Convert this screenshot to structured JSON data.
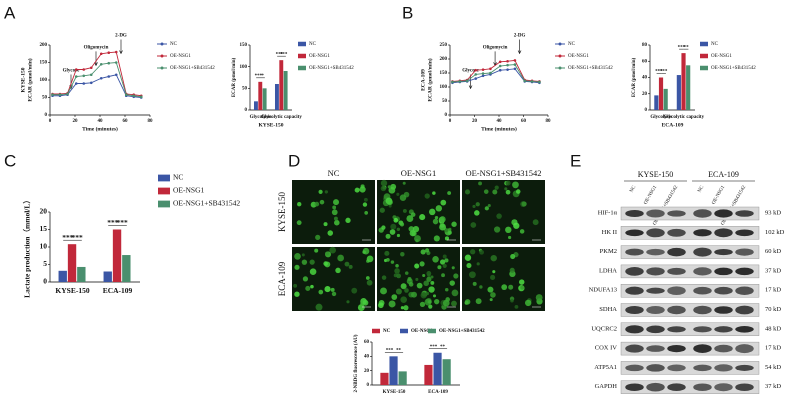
{
  "panel_labels": [
    "A",
    "B",
    "C",
    "D",
    "E"
  ],
  "chart_data": [
    {
      "type": "line",
      "ylabel": [
        "KYSE-150",
        "ECAR (pmol/min)"
      ],
      "xlabel": "Time (minutes)",
      "x": [
        2,
        8,
        14,
        21,
        27,
        33,
        41,
        47,
        53,
        61,
        67,
        73
      ],
      "xlim": [
        0,
        80
      ],
      "xticks": [
        0,
        20,
        40,
        60,
        80
      ],
      "ylim": [
        0,
        200
      ],
      "yticks": [
        0,
        50,
        100,
        150,
        200
      ],
      "annotations": [
        "Glycose",
        "Oligomycin",
        "2-DG"
      ],
      "series": [
        {
          "name": "NC",
          "color": "#3b56a5",
          "values": [
            55,
            55,
            58,
            90,
            90,
            92,
            105,
            110,
            115,
            55,
            52,
            50
          ]
        },
        {
          "name": "OE-NSG1",
          "color": "#c1283a",
          "values": [
            60,
            60,
            62,
            130,
            130,
            135,
            175,
            178,
            180,
            60,
            58,
            55
          ]
        },
        {
          "name": "OE-NSG1+SB431542",
          "color": "#4a8f6e",
          "values": [
            58,
            58,
            60,
            110,
            112,
            115,
            145,
            148,
            150,
            58,
            55,
            52
          ]
        }
      ]
    },
    {
      "type": "bar",
      "ylabel": "ECAR (pmol/min)",
      "xlabel": "KYSE-150",
      "categories": [
        "Glycolysis",
        "Glycolytic capacity"
      ],
      "ylim": [
        0,
        150
      ],
      "yticks": [
        0,
        50,
        100,
        150
      ],
      "significance": [
        "***",
        "*",
        "***",
        "***"
      ],
      "series": [
        {
          "name": "NC",
          "color": "#3b56a5",
          "values": [
            20,
            60
          ]
        },
        {
          "name": "OE-NSG1",
          "color": "#c1283a",
          "values": [
            65,
            115
          ]
        },
        {
          "name": "OE-NSG1+SB431542",
          "color": "#4a8f6e",
          "values": [
            50,
            90
          ]
        }
      ]
    },
    {
      "type": "line",
      "ylabel": [
        "ECA-109",
        "ECAR (pmol/min)"
      ],
      "xlabel": "Time (minutes)",
      "x": [
        2,
        8,
        14,
        21,
        27,
        33,
        41,
        47,
        53,
        61,
        67,
        73
      ],
      "xlim": [
        0,
        80
      ],
      "xticks": [
        0,
        20,
        40,
        60,
        80
      ],
      "ylim": [
        0,
        250
      ],
      "yticks": [
        0,
        50,
        100,
        150,
        200,
        250
      ],
      "annotations": [
        "Glycose",
        "Oligomycin",
        "2-DG"
      ],
      "series": [
        {
          "name": "NC",
          "color": "#3b56a5",
          "values": [
            115,
            118,
            120,
            130,
            140,
            145,
            160,
            162,
            165,
            120,
            118,
            115
          ]
        },
        {
          "name": "OE-NSG1",
          "color": "#c1283a",
          "values": [
            120,
            122,
            125,
            160,
            162,
            165,
            190,
            192,
            195,
            125,
            122,
            120
          ]
        },
        {
          "name": "OE-NSG1+SB431542",
          "color": "#4a8f6e",
          "values": [
            118,
            120,
            122,
            145,
            148,
            150,
            175,
            178,
            180,
            122,
            120,
            118
          ]
        }
      ]
    },
    {
      "type": "bar",
      "ylabel": "ECAR (pmol/min)",
      "xlabel": "ECA-109",
      "categories": [
        "Glycolysis",
        "Glycolytic capacity"
      ],
      "ylim": [
        0,
        80
      ],
      "yticks": [
        0,
        20,
        40,
        60,
        80
      ],
      "significance": [
        "***",
        "***",
        "***",
        "**"
      ],
      "series": [
        {
          "name": "NC",
          "color": "#3b56a5",
          "values": [
            18,
            43
          ]
        },
        {
          "name": "OE-NSG1",
          "color": "#c1283a",
          "values": [
            40,
            70
          ]
        },
        {
          "name": "OE-NSG1+SB431542",
          "color": "#4a8f6e",
          "values": [
            26,
            55
          ]
        }
      ]
    },
    {
      "type": "bar",
      "ylabel": "Lactate production（mmol/L）",
      "categories": [
        "KYSE-150",
        "ECA-109"
      ],
      "ylim": [
        0,
        20
      ],
      "yticks": [
        0,
        5,
        10,
        15,
        20
      ],
      "significance": [
        "***",
        "***",
        "***",
        "***"
      ],
      "series": [
        {
          "name": "NC",
          "color": "#3b56a5",
          "values": [
            3.2,
            3.0
          ]
        },
        {
          "name": "OE-NSG1",
          "color": "#c1283a",
          "values": [
            10.8,
            15.0
          ]
        },
        {
          "name": "OE-NSG1+SB431542",
          "color": "#4a8f6e",
          "values": [
            4.3,
            7.7
          ]
        }
      ]
    },
    {
      "type": "bar",
      "ylabel": "2-NBDG fluorescence (AU)",
      "categories": [
        "KYSE-150",
        "ECA-109"
      ],
      "ylim": [
        0,
        60
      ],
      "yticks": [
        0,
        20,
        40,
        60
      ],
      "significance": [
        "***",
        "**",
        "***",
        "**"
      ],
      "series": [
        {
          "name": "NC",
          "color": "#c1283a",
          "values": [
            17,
            28
          ]
        },
        {
          "name": "OE-NSG1",
          "color": "#3b56a5",
          "values": [
            40,
            45
          ]
        },
        {
          "name": "OE-NSG1+SB431542",
          "color": "#4a8f6e",
          "values": [
            19,
            36
          ]
        }
      ]
    }
  ],
  "microscopy": {
    "columns": [
      "NC",
      "OE-NSG1",
      "OE-NSG1+SB431542"
    ],
    "rows": [
      "KYSE-150",
      "ECA-109"
    ]
  },
  "blot": {
    "groups": [
      "KYSE-150",
      "ECA-109"
    ],
    "lanes": [
      "NC",
      "OE-NSG1",
      "OE-NSG1+SB431542"
    ],
    "proteins": [
      {
        "name": "HIF-1α",
        "size": "93 kD"
      },
      {
        "name": "HK II",
        "size": "102 kD"
      },
      {
        "name": "PKM2",
        "size": "60 kD"
      },
      {
        "name": "LDHA",
        "size": "37 kD"
      },
      {
        "name": "NDUFA13",
        "size": "17 kD"
      },
      {
        "name": "SDHA",
        "size": "70 kD"
      },
      {
        "name": "UQCRC2",
        "size": "48 kD"
      },
      {
        "name": "COX IV",
        "size": "17 kD"
      },
      {
        "name": "ATP5A1",
        "size": "54 kD"
      },
      {
        "name": "GAPDH",
        "size": "37 kD"
      }
    ]
  }
}
